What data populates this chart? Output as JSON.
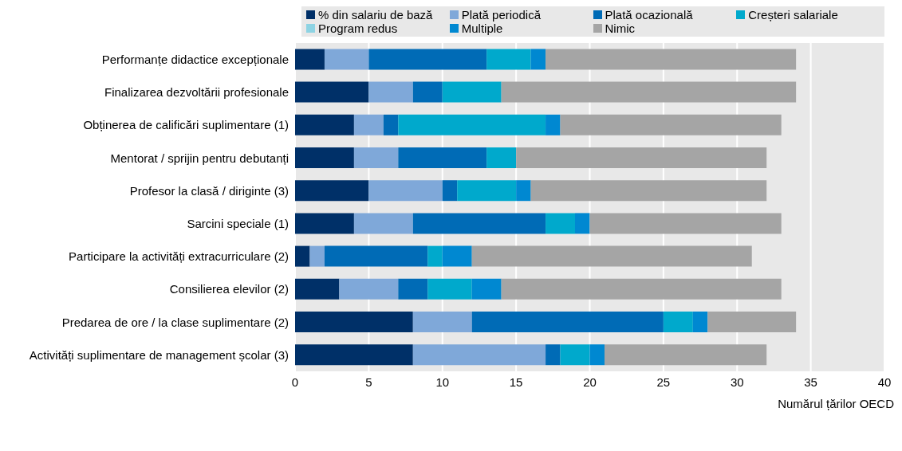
{
  "chart_data": {
    "type": "bar",
    "orientation": "horizontal",
    "stacked": true,
    "xlabel": "Numărul țărilor OECD",
    "categories": [
      "Performanțe didactice excepționale",
      "Finalizarea dezvoltării profesionale",
      "Obținerea de calificări suplimentare (1)",
      "Mentorat / sprijin pentru debutanți",
      "Profesor la clasă / diriginte (3)",
      "Sarcini speciale (1)",
      "Participare la activități extracurriculare (2)",
      "Consilierea elevilor (2)",
      "Predarea de ore / la clase suplimentare (2)",
      "Activități suplimentare de management școlar (3)"
    ],
    "series": [
      {
        "name": "% din salariu de bază",
        "color": "#003068",
        "values": [
          2,
          5,
          4,
          4,
          5,
          4,
          1,
          3,
          8,
          8
        ]
      },
      {
        "name": "Plată periodică",
        "color": "#7fa8d9",
        "values": [
          3,
          3,
          2,
          3,
          5,
          4,
          1,
          4,
          4,
          9
        ]
      },
      {
        "name": "Plată ocazională",
        "color": "#006bb6",
        "values": [
          8,
          2,
          1,
          6,
          1,
          9,
          7,
          2,
          13,
          1
        ]
      },
      {
        "name": "Creșteri salariale",
        "color": "#00a9cc",
        "values": [
          3,
          4,
          10,
          2,
          4,
          2,
          1,
          3,
          2,
          2
        ]
      },
      {
        "name": "Program redus",
        "color": "#8dd3e3",
        "values": [
          0,
          0,
          0,
          0,
          0,
          0,
          0,
          0,
          0,
          0
        ]
      },
      {
        "name": "Multiple",
        "color": "#0088d1",
        "values": [
          1,
          0,
          1,
          0,
          1,
          1,
          2,
          2,
          1,
          1
        ]
      },
      {
        "name": "Nimic",
        "color": "#a5a5a5",
        "values": [
          17,
          20,
          15,
          17,
          16,
          13,
          19,
          19,
          6,
          11
        ]
      }
    ],
    "xlim": [
      0,
      40
    ],
    "xticks": [
      0,
      5,
      10,
      15,
      20,
      25,
      30,
      35,
      40
    ],
    "grid": "x",
    "legend": "top"
  }
}
